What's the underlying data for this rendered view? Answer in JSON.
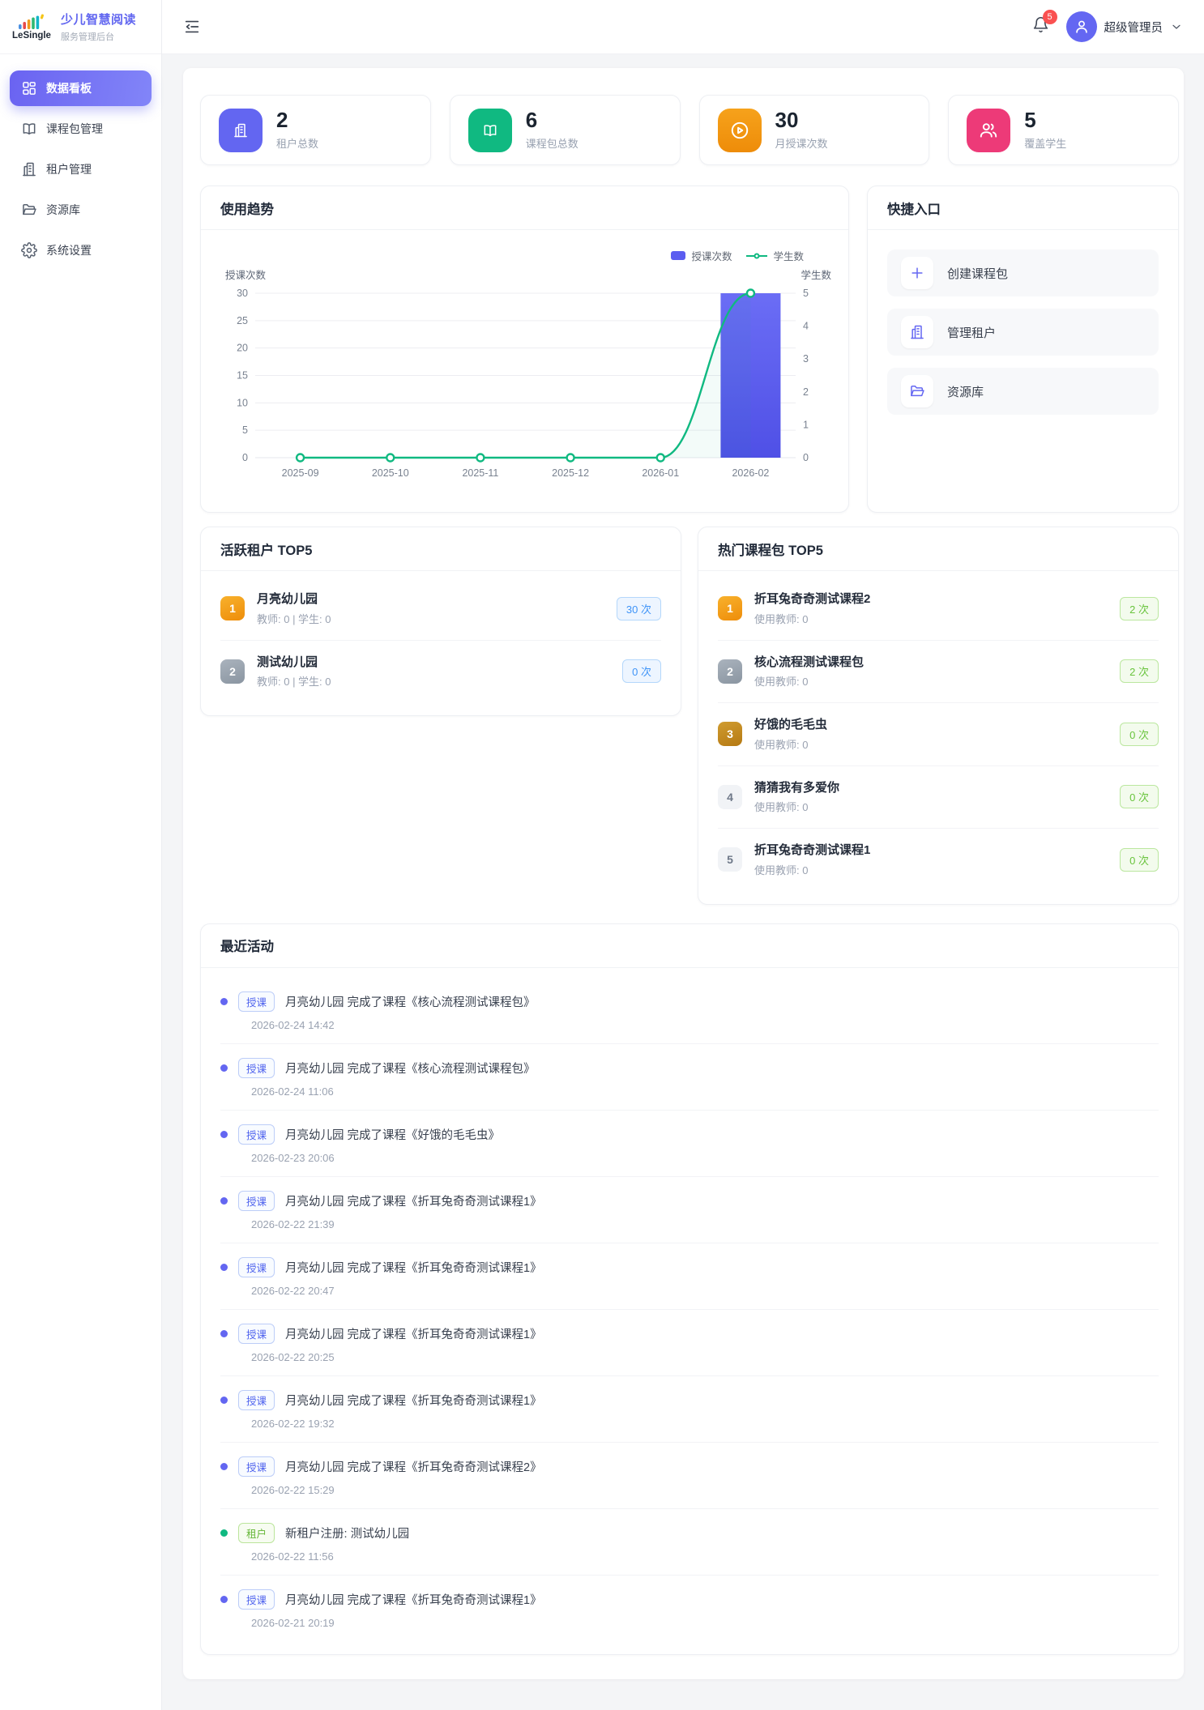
{
  "app": {
    "logo_text": "LeSingle",
    "brand_title": "少儿智慧阅读",
    "brand_subtitle": "服务管理后台"
  },
  "header": {
    "notification_count": "5",
    "user_name": "超级管理员"
  },
  "sidebar": {
    "items": [
      {
        "label": "数据看板",
        "icon": "dashboard-icon",
        "active": true
      },
      {
        "label": "课程包管理",
        "icon": "book-icon",
        "active": false
      },
      {
        "label": "租户管理",
        "icon": "building-icon",
        "active": false
      },
      {
        "label": "资源库",
        "icon": "folder-icon",
        "active": false
      },
      {
        "label": "系统设置",
        "icon": "gear-icon",
        "active": false
      }
    ]
  },
  "stats": [
    {
      "value": "2",
      "label": "租户总数",
      "icon": "building-icon",
      "color": "#6366f1"
    },
    {
      "value": "6",
      "label": "课程包总数",
      "icon": "book-icon",
      "color": "#10b981"
    },
    {
      "value": "30",
      "label": "月授课次数",
      "icon": "play-circle-icon",
      "color": "linear-gradient(180deg,#f6a21b,#ee8c09)"
    },
    {
      "value": "5",
      "label": "覆盖学生",
      "icon": "people-icon",
      "color": "#ed3a78"
    }
  ],
  "chart_card": {
    "title": "使用趋势"
  },
  "chart_data": {
    "type": "bar",
    "title": "使用趋势",
    "categories": [
      "2025-09",
      "2025-10",
      "2025-11",
      "2025-12",
      "2026-01",
      "2026-02"
    ],
    "series": [
      {
        "name": "授课次数",
        "type": "bar",
        "axis": "left",
        "values": [
          0,
          0,
          0,
          0,
          0,
          30
        ],
        "color": "#5b5df0",
        "color_top": "#6b6df5",
        "color_bottom": "#4f50e6"
      },
      {
        "name": "学生数",
        "type": "line",
        "axis": "right",
        "values": [
          0,
          0,
          0,
          0,
          0,
          5
        ],
        "color": "#10b981",
        "smooth": true
      }
    ],
    "left_axis": {
      "title": "授课次数",
      "min": 0,
      "max": 30,
      "ticks": [
        0,
        5,
        10,
        15,
        20,
        25,
        30
      ]
    },
    "right_axis": {
      "title": "学生数",
      "min": 0,
      "max": 5,
      "ticks": [
        0,
        1,
        2,
        3,
        4,
        5
      ]
    },
    "grid": true,
    "legend_position": "top-right"
  },
  "quick": {
    "title": "快捷入口",
    "items": [
      {
        "label": "创建课程包",
        "icon": "plus-icon"
      },
      {
        "label": "管理租户",
        "icon": "building-icon"
      },
      {
        "label": "资源库",
        "icon": "folder-icon"
      }
    ]
  },
  "active_tenants": {
    "title": "活跃租户 TOP5",
    "items": [
      {
        "rank": "1",
        "name": "月亮幼儿园",
        "meta": "教师: 0 | 学生: 0",
        "count": "30 次"
      },
      {
        "rank": "2",
        "name": "测试幼儿园",
        "meta": "教师: 0 | 学生: 0",
        "count": "0 次"
      }
    ]
  },
  "hot_packages": {
    "title": "热门课程包 TOP5",
    "items": [
      {
        "rank": "1",
        "name": "折耳兔奇奇测试课程2",
        "meta": "使用教师: 0",
        "count": "2 次"
      },
      {
        "rank": "2",
        "name": "核心流程测试课程包",
        "meta": "使用教师: 0",
        "count": "2 次"
      },
      {
        "rank": "3",
        "name": "好饿的毛毛虫",
        "meta": "使用教师: 0",
        "count": "0 次"
      },
      {
        "rank": "4",
        "name": "猜猜我有多爱你",
        "meta": "使用教师: 0",
        "count": "0 次"
      },
      {
        "rank": "5",
        "name": "折耳兔奇奇测试课程1",
        "meta": "使用教师: 0",
        "count": "0 次"
      }
    ]
  },
  "activities": {
    "title": "最近活动",
    "items": [
      {
        "tag": "授课",
        "type": "course",
        "text": "月亮幼儿园 完成了课程《核心流程测试课程包》",
        "time": "2026-02-24 14:42"
      },
      {
        "tag": "授课",
        "type": "course",
        "text": "月亮幼儿园 完成了课程《核心流程测试课程包》",
        "time": "2026-02-24 11:06"
      },
      {
        "tag": "授课",
        "type": "course",
        "text": "月亮幼儿园 完成了课程《好饿的毛毛虫》",
        "time": "2026-02-23 20:06"
      },
      {
        "tag": "授课",
        "type": "course",
        "text": "月亮幼儿园 完成了课程《折耳兔奇奇测试课程1》",
        "time": "2026-02-22 21:39"
      },
      {
        "tag": "授课",
        "type": "course",
        "text": "月亮幼儿园 完成了课程《折耳兔奇奇测试课程1》",
        "time": "2026-02-22 20:47"
      },
      {
        "tag": "授课",
        "type": "course",
        "text": "月亮幼儿园 完成了课程《折耳兔奇奇测试课程1》",
        "time": "2026-02-22 20:25"
      },
      {
        "tag": "授课",
        "type": "course",
        "text": "月亮幼儿园 完成了课程《折耳兔奇奇测试课程1》",
        "time": "2026-02-22 19:32"
      },
      {
        "tag": "授课",
        "type": "course",
        "text": "月亮幼儿园 完成了课程《折耳兔奇奇测试课程2》",
        "time": "2026-02-22 15:29"
      },
      {
        "tag": "租户",
        "type": "tenant",
        "text": "新租户注册: 测试幼儿园",
        "time": "2026-02-22 11:56"
      },
      {
        "tag": "授课",
        "type": "course",
        "text": "月亮幼儿园 完成了课程《折耳兔奇奇测试课程1》",
        "time": "2026-02-21 20:19"
      }
    ]
  }
}
